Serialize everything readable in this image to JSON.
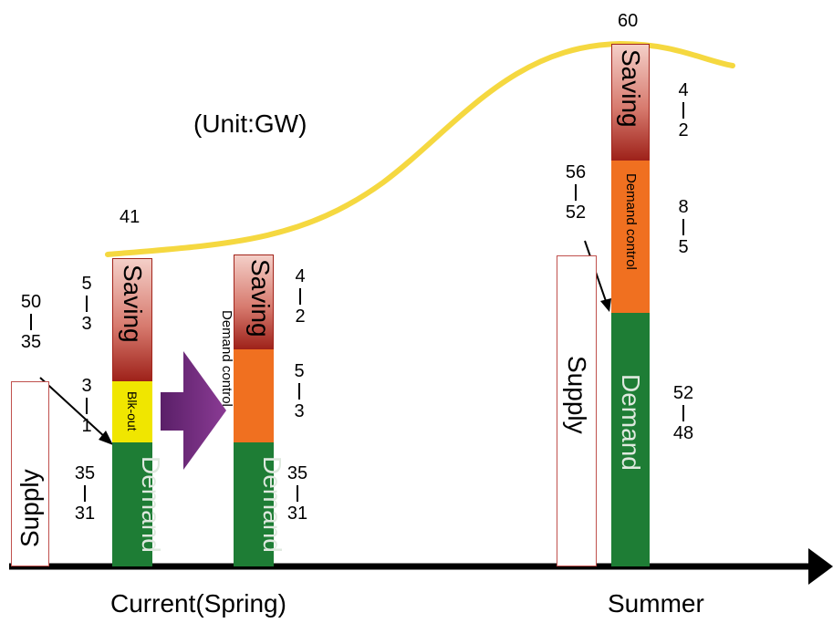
{
  "unit_label": "(Unit:GW)",
  "axis": {
    "label_current": "Current(Spring)",
    "label_summer": "Summer"
  },
  "bar_labels": {
    "supply": "Supply",
    "demand": "Demand",
    "demand_wrapped": "Dema\nnd",
    "saving": "Saving",
    "saving_wrapped": "Savi\nng",
    "blackout": "Blk-out",
    "demand_control": "Demand control"
  },
  "values": {
    "current_total": "41",
    "current_saving": [
      "5",
      "3"
    ],
    "current_supply": [
      "50",
      "35"
    ],
    "current_blackout": [
      "3",
      "1"
    ],
    "current_demand": [
      "35",
      "31"
    ],
    "mid_saving": [
      "4",
      "2"
    ],
    "mid_demand_control": [
      "5",
      "3"
    ],
    "mid_demand": [
      "35",
      "31"
    ],
    "summer_total": "60",
    "summer_saving": [
      "4",
      "2"
    ],
    "summer_supply": [
      "56",
      "52"
    ],
    "summer_demand_control": [
      "8",
      "5"
    ],
    "summer_demand": [
      "52",
      "48"
    ]
  },
  "colors": {
    "demand": "#1e7d35",
    "saving_top": "#f2c4bd",
    "saving_bottom": "#a2241b",
    "blackout": "#f0e600",
    "demand_control": "#f07020",
    "curve": "#f5d840",
    "arrow": "#6b2a7a",
    "supply_border": "#c0504d"
  }
}
